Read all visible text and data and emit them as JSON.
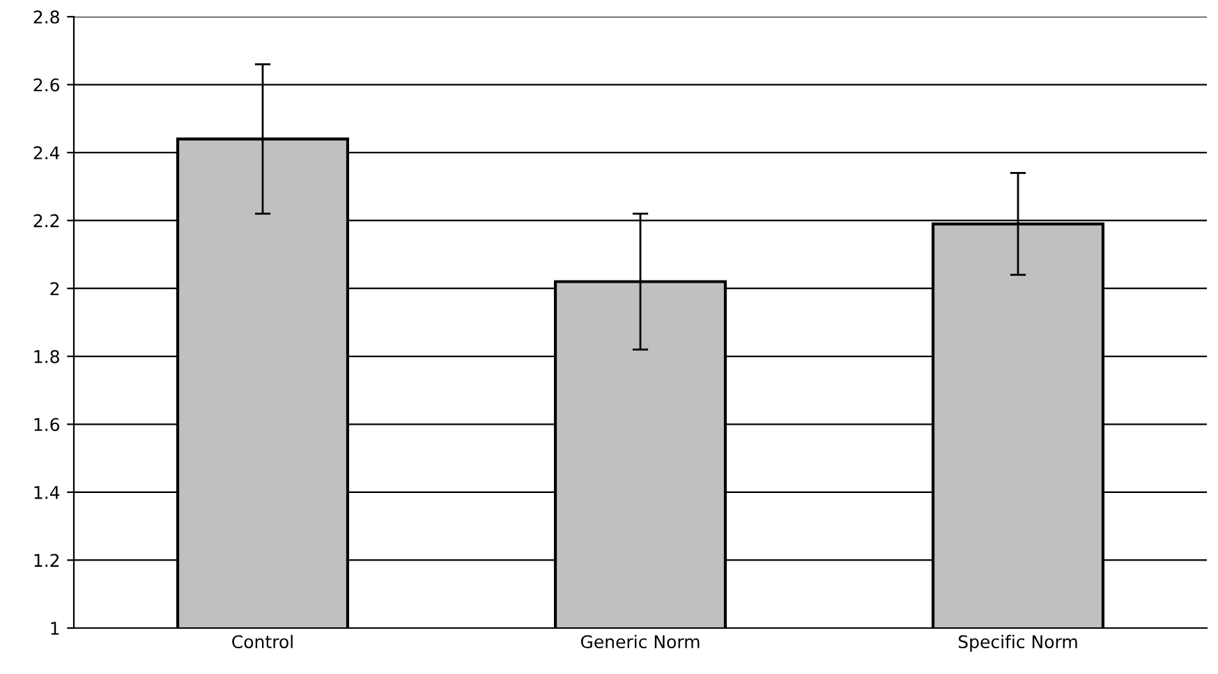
{
  "chart_data": {
    "type": "bar",
    "categories": [
      "Control",
      "Generic Norm",
      "Specific Norm"
    ],
    "values": [
      2.44,
      2.02,
      2.19
    ],
    "errors": [
      0.22,
      0.2,
      0.15
    ],
    "color": "#c0c0c0",
    "ylim": [
      1,
      2.8
    ],
    "yticks": [
      1,
      1.2,
      1.4,
      1.6,
      1.8,
      2,
      2.2,
      2.4,
      2.6,
      2.8
    ],
    "grid": "y"
  }
}
